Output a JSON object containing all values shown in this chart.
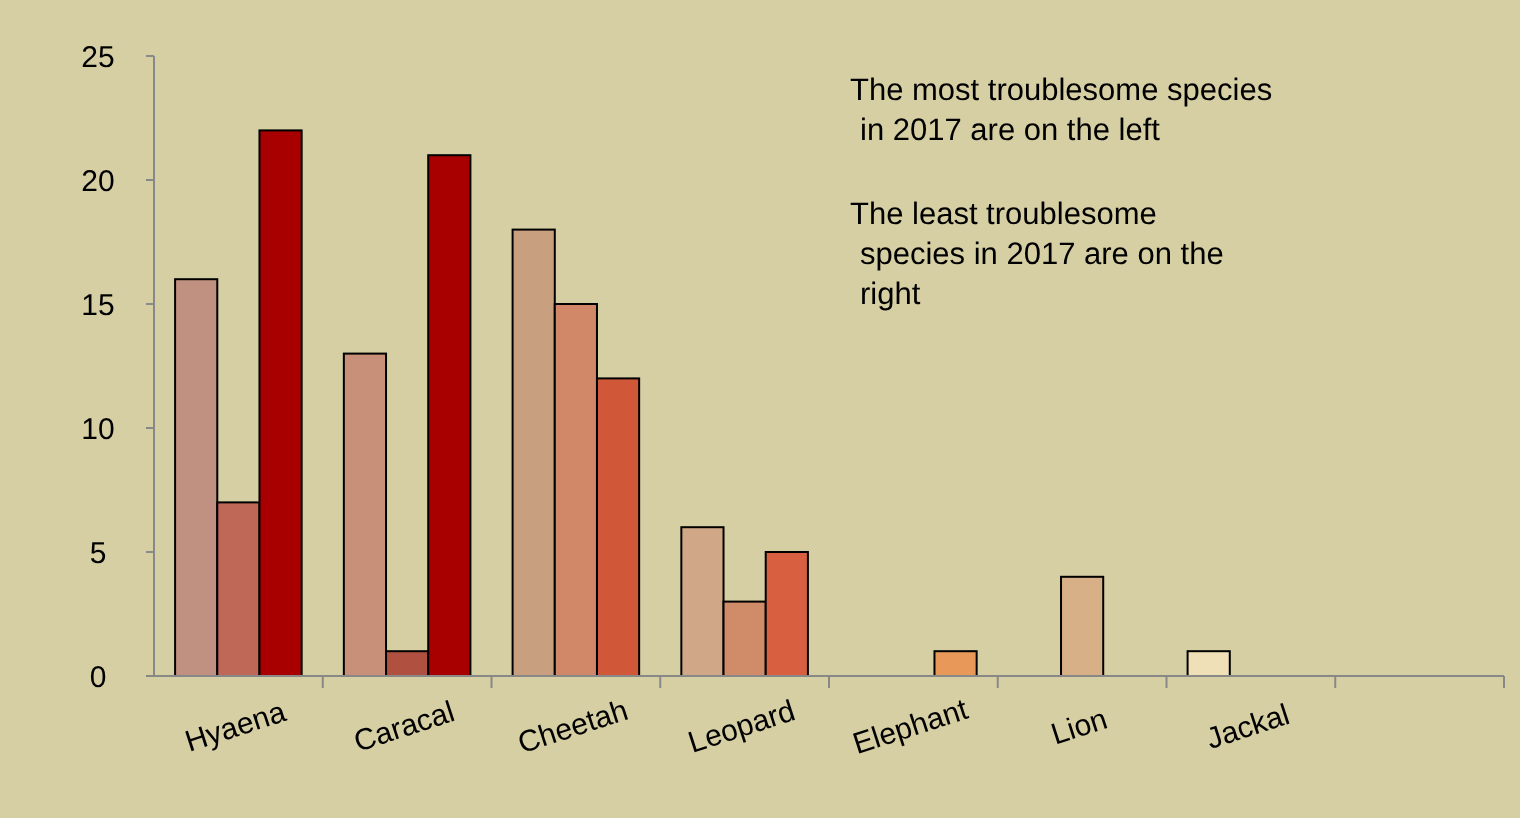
{
  "chart_data": {
    "type": "bar",
    "categories": [
      "Hyaena",
      "Caracal",
      "Cheetah",
      "Leopard",
      "Elephant",
      "Lion",
      "Jackal",
      null
    ],
    "series": [
      {
        "colors": [
          "#c09080",
          "#c89078",
          "#c8a080",
          "#d0a888",
          null,
          null,
          "#f0e0b8",
          null
        ],
        "values": [
          16,
          13,
          18,
          6,
          null,
          null,
          1,
          null
        ]
      },
      {
        "colors": [
          "#c06858",
          "#b05040",
          "#d08868",
          "#d08c68",
          null,
          "#d8b088",
          null,
          null
        ],
        "values": [
          7,
          1,
          15,
          3,
          null,
          4,
          null,
          null
        ]
      },
      {
        "colors": [
          "#a80000",
          "#a80000",
          "#d05838",
          "#d86040",
          "#e89858",
          null,
          null,
          null
        ],
        "values": [
          22,
          21,
          12,
          5,
          1,
          null,
          null,
          null
        ]
      }
    ],
    "ylim": [
      0,
      25
    ],
    "yticks": [
      0,
      5,
      10,
      15,
      20,
      25
    ],
    "grid": false,
    "annotations": [
      "The most troublesome species in 2017 are on the left",
      "The least troublesome species in 2017 are on the right"
    ]
  }
}
